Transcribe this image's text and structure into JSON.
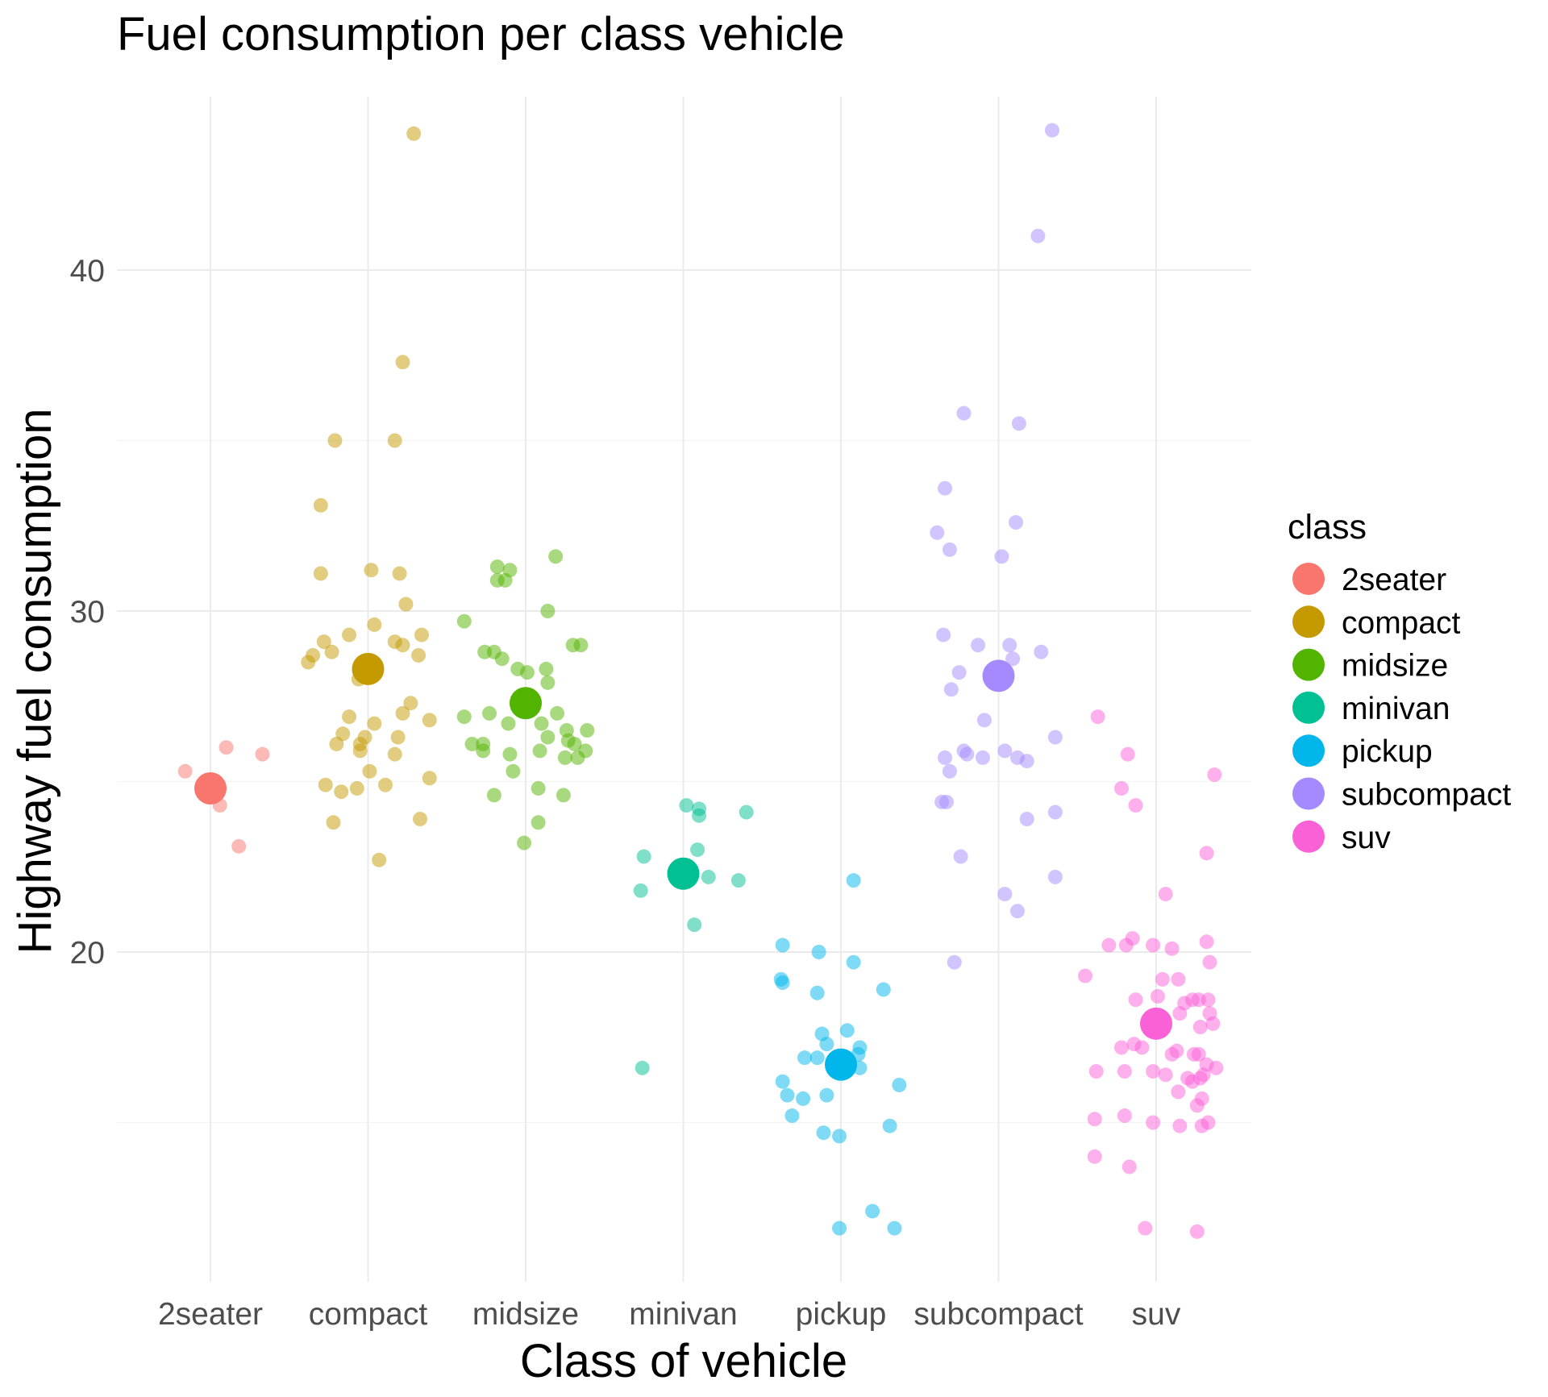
{
  "chart_data": {
    "type": "scatter",
    "title": "Fuel consumption per class vehicle",
    "xlabel": "Class of vehicle",
    "ylabel": "Highway fuel consumption",
    "categories": [
      "2seater",
      "compact",
      "midsize",
      "minivan",
      "pickup",
      "subcompact",
      "suv"
    ],
    "y_ticks": [
      20,
      30,
      40
    ],
    "ylim": [
      10.2,
      45.0
    ],
    "grid": true,
    "legend": {
      "title": "class",
      "placement": "right",
      "entries": [
        "2seater",
        "compact",
        "midsize",
        "minivan",
        "pickup",
        "subcompact",
        "suv"
      ]
    },
    "colors": {
      "2seater": "#F8766D",
      "compact": "#C49A00",
      "midsize": "#53B400",
      "minivan": "#00C094",
      "pickup": "#00B6EB",
      "subcompact": "#A58AFF",
      "suv": "#FB61D7"
    },
    "series": [
      {
        "category": "2seater",
        "mean": 24.8,
        "points": [
          [
            -0.16,
            25.3
          ],
          [
            0.1,
            26.0
          ],
          [
            0.33,
            25.8
          ],
          [
            0.06,
            24.3
          ],
          [
            0.18,
            23.1
          ]
        ]
      },
      {
        "category": "compact",
        "mean": 28.3,
        "points": [
          [
            0.29,
            44.0
          ],
          [
            0.22,
            37.3
          ],
          [
            -0.21,
            35.0
          ],
          [
            0.17,
            35.0
          ],
          [
            -0.3,
            33.1
          ],
          [
            -0.3,
            31.1
          ],
          [
            0.02,
            31.2
          ],
          [
            0.2,
            31.1
          ],
          [
            0.24,
            30.2
          ],
          [
            0.34,
            29.3
          ],
          [
            -0.12,
            29.3
          ],
          [
            0.04,
            29.6
          ],
          [
            0.17,
            29.1
          ],
          [
            0.22,
            29.0
          ],
          [
            -0.35,
            28.7
          ],
          [
            -0.38,
            28.5
          ],
          [
            -0.23,
            28.8
          ],
          [
            -0.28,
            29.1
          ],
          [
            0.32,
            28.7
          ],
          [
            -0.06,
            28.0
          ],
          [
            0.27,
            27.3
          ],
          [
            0.22,
            27.0
          ],
          [
            -0.12,
            26.9
          ],
          [
            0.04,
            26.7
          ],
          [
            0.39,
            26.8
          ],
          [
            -0.16,
            26.4
          ],
          [
            -0.02,
            26.3
          ],
          [
            0.19,
            26.3
          ],
          [
            -0.2,
            26.1
          ],
          [
            -0.05,
            26.1
          ],
          [
            -0.05,
            25.9
          ],
          [
            0.17,
            25.8
          ],
          [
            0.01,
            25.3
          ],
          [
            0.39,
            25.1
          ],
          [
            -0.27,
            24.9
          ],
          [
            -0.07,
            24.8
          ],
          [
            -0.17,
            24.7
          ],
          [
            0.11,
            24.9
          ],
          [
            -0.22,
            23.8
          ],
          [
            0.33,
            23.9
          ],
          [
            0.07,
            22.7
          ]
        ]
      },
      {
        "category": "midsize",
        "mean": 27.3,
        "points": [
          [
            0.19,
            31.6
          ],
          [
            -0.18,
            31.3
          ],
          [
            -0.1,
            31.2
          ],
          [
            -0.18,
            30.9
          ],
          [
            -0.13,
            30.9
          ],
          [
            0.14,
            30.0
          ],
          [
            -0.39,
            29.7
          ],
          [
            0.35,
            29.0
          ],
          [
            0.3,
            29.0
          ],
          [
            -0.2,
            28.8
          ],
          [
            -0.26,
            28.8
          ],
          [
            -0.15,
            28.6
          ],
          [
            -0.05,
            28.3
          ],
          [
            0.01,
            28.2
          ],
          [
            0.13,
            28.3
          ],
          [
            0.14,
            27.9
          ],
          [
            -0.23,
            27.0
          ],
          [
            -0.39,
            26.9
          ],
          [
            0.2,
            27.0
          ],
          [
            -0.11,
            26.7
          ],
          [
            0.1,
            26.7
          ],
          [
            0.26,
            26.5
          ],
          [
            0.39,
            26.5
          ],
          [
            0.14,
            26.3
          ],
          [
            0.27,
            26.2
          ],
          [
            -0.34,
            26.1
          ],
          [
            -0.27,
            26.1
          ],
          [
            0.31,
            26.1
          ],
          [
            -0.27,
            25.9
          ],
          [
            0.09,
            25.9
          ],
          [
            0.38,
            25.9
          ],
          [
            -0.1,
            25.8
          ],
          [
            0.25,
            25.7
          ],
          [
            0.33,
            25.7
          ],
          [
            -0.08,
            25.3
          ],
          [
            0.08,
            24.8
          ],
          [
            0.24,
            24.6
          ],
          [
            -0.2,
            24.6
          ],
          [
            0.08,
            23.8
          ],
          [
            -0.01,
            23.2
          ]
        ]
      },
      {
        "category": "minivan",
        "mean": 22.3,
        "points": [
          [
            0.02,
            24.3
          ],
          [
            0.1,
            24.2
          ],
          [
            0.1,
            24.0
          ],
          [
            0.4,
            24.1
          ],
          [
            0.09,
            23.0
          ],
          [
            -0.25,
            22.8
          ],
          [
            0.16,
            22.2
          ],
          [
            0.35,
            22.1
          ],
          [
            -0.27,
            21.8
          ],
          [
            0.07,
            20.8
          ],
          [
            -0.26,
            16.6
          ]
        ]
      },
      {
        "category": "pickup",
        "mean": 16.7,
        "points": [
          [
            0.08,
            22.1
          ],
          [
            -0.37,
            20.2
          ],
          [
            -0.14,
            20.0
          ],
          [
            0.08,
            19.7
          ],
          [
            0.27,
            18.9
          ],
          [
            -0.38,
            19.2
          ],
          [
            -0.37,
            19.1
          ],
          [
            -0.15,
            18.8
          ],
          [
            -0.12,
            17.6
          ],
          [
            0.04,
            17.7
          ],
          [
            -0.09,
            17.3
          ],
          [
            0.12,
            17.2
          ],
          [
            0.11,
            17.0
          ],
          [
            -0.23,
            16.9
          ],
          [
            -0.15,
            16.9
          ],
          [
            0.12,
            16.6
          ],
          [
            -0.37,
            16.2
          ],
          [
            0.37,
            16.1
          ],
          [
            -0.34,
            15.8
          ],
          [
            -0.24,
            15.7
          ],
          [
            -0.09,
            15.8
          ],
          [
            0.31,
            14.9
          ],
          [
            -0.31,
            15.2
          ],
          [
            -0.11,
            14.7
          ],
          [
            -0.01,
            14.6
          ],
          [
            0.2,
            12.4
          ],
          [
            -0.01,
            11.9
          ],
          [
            0.34,
            11.9
          ]
        ]
      },
      {
        "category": "subcompact",
        "mean": 28.1,
        "points": [
          [
            0.34,
            44.1
          ],
          [
            0.25,
            41.0
          ],
          [
            -0.22,
            35.8
          ],
          [
            0.13,
            35.5
          ],
          [
            -0.34,
            33.6
          ],
          [
            -0.39,
            32.3
          ],
          [
            -0.31,
            31.8
          ],
          [
            0.11,
            32.6
          ],
          [
            0.02,
            31.6
          ],
          [
            -0.35,
            29.3
          ],
          [
            -0.13,
            29.0
          ],
          [
            0.07,
            29.0
          ],
          [
            0.09,
            28.6
          ],
          [
            0.27,
            28.8
          ],
          [
            -0.25,
            28.2
          ],
          [
            -0.3,
            27.7
          ],
          [
            -0.09,
            26.8
          ],
          [
            0.36,
            26.3
          ],
          [
            -0.22,
            25.9
          ],
          [
            -0.2,
            25.8
          ],
          [
            -0.34,
            25.7
          ],
          [
            -0.1,
            25.7
          ],
          [
            0.04,
            25.9
          ],
          [
            0.12,
            25.7
          ],
          [
            0.18,
            25.6
          ],
          [
            -0.31,
            25.3
          ],
          [
            -0.36,
            24.4
          ],
          [
            -0.33,
            24.4
          ],
          [
            0.36,
            24.1
          ],
          [
            0.18,
            23.9
          ],
          [
            -0.24,
            22.8
          ],
          [
            0.36,
            22.2
          ],
          [
            0.04,
            21.7
          ],
          [
            0.12,
            21.2
          ],
          [
            -0.28,
            19.7
          ]
        ]
      },
      {
        "category": "suv",
        "mean": 17.9,
        "points": [
          [
            -0.37,
            26.9
          ],
          [
            -0.18,
            25.8
          ],
          [
            0.37,
            25.2
          ],
          [
            -0.22,
            24.8
          ],
          [
            -0.13,
            24.3
          ],
          [
            0.32,
            22.9
          ],
          [
            0.06,
            21.7
          ],
          [
            -0.3,
            20.2
          ],
          [
            -0.19,
            20.2
          ],
          [
            -0.15,
            20.4
          ],
          [
            -0.02,
            20.2
          ],
          [
            0.1,
            20.1
          ],
          [
            0.32,
            20.3
          ],
          [
            -0.45,
            19.3
          ],
          [
            0.04,
            19.2
          ],
          [
            0.14,
            19.2
          ],
          [
            0.34,
            19.7
          ],
          [
            -0.13,
            18.6
          ],
          [
            0.01,
            18.7
          ],
          [
            0.23,
            18.6
          ],
          [
            0.27,
            18.6
          ],
          [
            0.18,
            18.5
          ],
          [
            0.33,
            18.6
          ],
          [
            0.34,
            18.2
          ],
          [
            0.15,
            18.2
          ],
          [
            0.28,
            17.8
          ],
          [
            0.36,
            17.9
          ],
          [
            -0.05,
            17.8
          ],
          [
            -0.14,
            17.3
          ],
          [
            -0.22,
            17.2
          ],
          [
            -0.09,
            17.2
          ],
          [
            0.1,
            17.0
          ],
          [
            0.13,
            17.1
          ],
          [
            0.24,
            17.0
          ],
          [
            0.27,
            17.0
          ],
          [
            0.32,
            16.7
          ],
          [
            0.38,
            16.6
          ],
          [
            -0.38,
            16.5
          ],
          [
            -0.2,
            16.5
          ],
          [
            -0.02,
            16.5
          ],
          [
            0.06,
            16.4
          ],
          [
            0.2,
            16.3
          ],
          [
            0.28,
            16.3
          ],
          [
            0.3,
            16.4
          ],
          [
            0.23,
            16.2
          ],
          [
            0.14,
            15.9
          ],
          [
            0.29,
            15.7
          ],
          [
            0.26,
            15.5
          ],
          [
            -0.39,
            15.1
          ],
          [
            -0.2,
            15.2
          ],
          [
            -0.02,
            15.0
          ],
          [
            0.15,
            14.9
          ],
          [
            0.29,
            14.9
          ],
          [
            0.33,
            15.0
          ],
          [
            -0.39,
            14.0
          ],
          [
            -0.17,
            13.7
          ],
          [
            -0.07,
            11.9
          ],
          [
            0.26,
            11.8
          ]
        ]
      }
    ]
  }
}
